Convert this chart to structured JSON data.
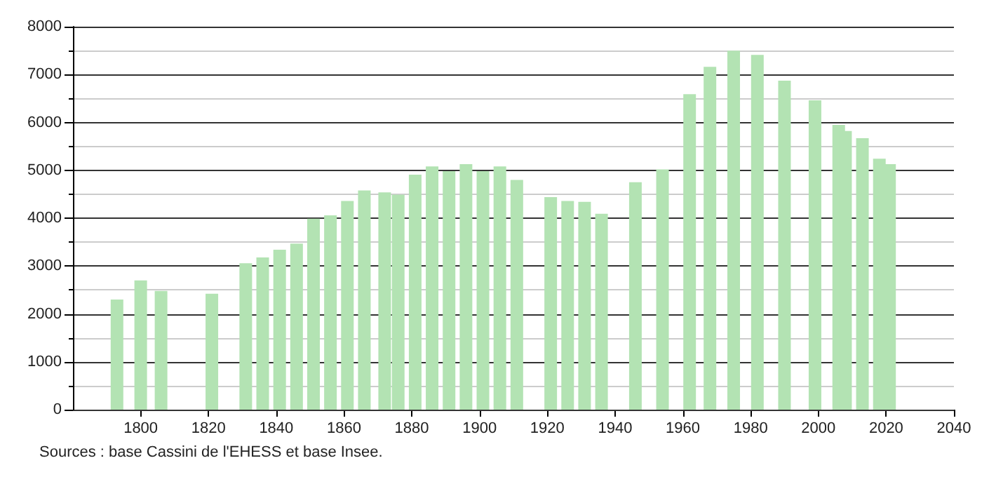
{
  "chart_data": {
    "type": "bar",
    "x": [
      1793,
      1800,
      1806,
      1821,
      1831,
      1836,
      1841,
      1846,
      1851,
      1856,
      1861,
      1866,
      1872,
      1876,
      1881,
      1886,
      1891,
      1896,
      1901,
      1906,
      1911,
      1921,
      1926,
      1931,
      1936,
      1946,
      1954,
      1962,
      1968,
      1975,
      1982,
      1990,
      1999,
      2006,
      2008,
      2013,
      2018,
      2021
    ],
    "series": [
      {
        "color": "#b3e3b3",
        "values": [
          2300,
          2700,
          2480,
          2420,
          3060,
          3180,
          3340,
          3470,
          3990,
          4060,
          4360,
          4580,
          4540,
          4490,
          4910,
          5080,
          4980,
          5130,
          4980,
          5080,
          4800,
          4440,
          4360,
          4340,
          4090,
          4750,
          5020,
          6590,
          7160,
          7500,
          7410,
          6870,
          6460,
          5950,
          5820,
          5670,
          5240,
          5130
        ]
      }
    ],
    "xlim": [
      1780,
      2040
    ],
    "xticks": [
      1800,
      1820,
      1840,
      1860,
      1880,
      1900,
      1920,
      1940,
      1960,
      1980,
      2000,
      2020,
      2040
    ],
    "ylim": [
      0,
      8000
    ],
    "yticks": [
      0,
      {
        "value": 500,
        "label": null
      },
      1000,
      {
        "value": 1500,
        "label": null
      },
      2000,
      {
        "value": 2500,
        "label": null
      },
      3000,
      {
        "value": 3500,
        "label": null
      },
      4000,
      {
        "value": 4500,
        "label": null
      },
      5000,
      {
        "value": 5500,
        "label": null
      },
      6000,
      {
        "value": 6500,
        "label": null
      },
      7000,
      {
        "value": 7500,
        "label": null
      },
      8000
    ],
    "grid": "y",
    "annotations": [
      "Sources : base Cassini de l'EHESS et base Insee."
    ]
  }
}
